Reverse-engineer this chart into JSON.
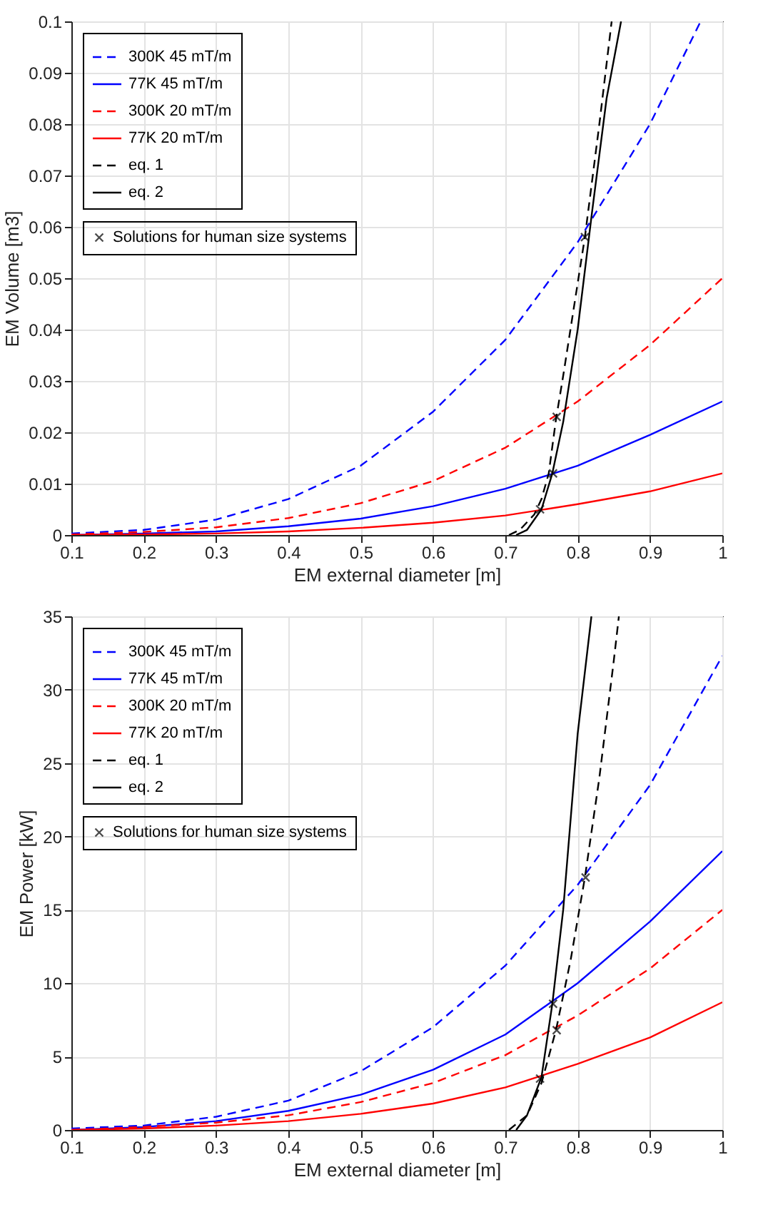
{
  "chart_data": [
    {
      "type": "line",
      "xlabel": "EM external diameter [m]",
      "ylabel": "EM Volume [m3]",
      "xlim": [
        0.1,
        1
      ],
      "ylim": [
        0,
        0.1
      ],
      "xticks": [
        0.1,
        0.2,
        0.3,
        0.4,
        0.5,
        0.6,
        0.7,
        0.8,
        0.9,
        1
      ],
      "yticks": [
        0,
        0.01,
        0.02,
        0.03,
        0.04,
        0.05,
        0.06,
        0.07,
        0.08,
        0.09,
        0.1
      ],
      "grid": true,
      "legend": "top left",
      "series": [
        {
          "name": "300K 45 mT/m",
          "color": "#0000ff",
          "line_style": "dashed",
          "x": [
            0.1,
            0.2,
            0.3,
            0.4,
            0.5,
            0.6,
            0.7,
            0.8,
            0.9,
            0.97
          ],
          "values": [
            0.0003,
            0.001,
            0.003,
            0.007,
            0.0135,
            0.024,
            0.038,
            0.057,
            0.08,
            0.1
          ]
        },
        {
          "name": "77K 45 mT/m",
          "color": "#0000ff",
          "line_style": "solid",
          "x": [
            0.1,
            0.2,
            0.3,
            0.4,
            0.5,
            0.6,
            0.7,
            0.8,
            0.9,
            1
          ],
          "values": [
            0,
            0.0003,
            0.0007,
            0.0017,
            0.0032,
            0.0056,
            0.009,
            0.0135,
            0.0195,
            0.026
          ]
        },
        {
          "name": "300K 20 mT/m",
          "color": "#ff0000",
          "line_style": "dashed",
          "x": [
            0.1,
            0.2,
            0.3,
            0.4,
            0.5,
            0.6,
            0.7,
            0.8,
            0.9,
            1
          ],
          "values": [
            0.0001,
            0.0006,
            0.0015,
            0.0033,
            0.0062,
            0.0105,
            0.017,
            0.026,
            0.037,
            0.05
          ]
        },
        {
          "name": "77K 20 mT/m",
          "color": "#ff0000",
          "line_style": "solid",
          "x": [
            0.1,
            0.2,
            0.3,
            0.4,
            0.5,
            0.6,
            0.7,
            0.8,
            0.9,
            1
          ],
          "values": [
            0,
            0.0001,
            0.0003,
            0.0007,
            0.0014,
            0.0024,
            0.0038,
            0.006,
            0.0085,
            0.012
          ]
        },
        {
          "name": "eq. 1",
          "color": "#000000",
          "line_style": "dashed",
          "x": [
            0.705,
            0.72,
            0.74,
            0.75,
            0.76,
            0.77,
            0.78,
            0.79,
            0.81,
            0.83,
            0.847
          ],
          "values": [
            0,
            0.001,
            0.004,
            0.007,
            0.012,
            0.0225,
            0.031,
            0.04,
            0.058,
            0.08,
            0.1
          ]
        },
        {
          "name": "eq. 2",
          "color": "#000000",
          "line_style": "solid",
          "x": [
            0.715,
            0.73,
            0.75,
            0.765,
            0.78,
            0.8,
            0.82,
            0.84,
            0.86
          ],
          "values": [
            0,
            0.001,
            0.005,
            0.012,
            0.022,
            0.04,
            0.063,
            0.085,
            0.1
          ]
        },
        {
          "name": "Solutions for human size systems",
          "type": "scatter",
          "marker": "cross",
          "color": "#000000",
          "x": [
            0.748,
            0.766,
            0.771,
            0.81
          ],
          "values": [
            0.005,
            0.012,
            0.023,
            0.058
          ]
        }
      ]
    },
    {
      "type": "line",
      "xlabel": "EM external diameter [m]",
      "ylabel": "EM Power [kW]",
      "xlim": [
        0.1,
        1
      ],
      "ylim": [
        0,
        35
      ],
      "xticks": [
        0.1,
        0.2,
        0.3,
        0.4,
        0.5,
        0.6,
        0.7,
        0.8,
        0.9,
        1
      ],
      "yticks": [
        0,
        5,
        10,
        15,
        20,
        25,
        30,
        35
      ],
      "grid": true,
      "legend": "top left",
      "series": [
        {
          "name": "300K 45 mT/m",
          "color": "#0000ff",
          "line_style": "dashed",
          "x": [
            0.1,
            0.2,
            0.3,
            0.4,
            0.5,
            0.6,
            0.7,
            0.8,
            0.9,
            1
          ],
          "values": [
            0.1,
            0.3,
            0.9,
            2,
            4,
            7,
            11.2,
            16.7,
            23.5,
            32.3
          ]
        },
        {
          "name": "77K 45 mT/m",
          "color": "#0000ff",
          "line_style": "solid",
          "x": [
            0.1,
            0.2,
            0.3,
            0.4,
            0.5,
            0.6,
            0.7,
            0.8,
            0.9,
            1
          ],
          "values": [
            0,
            0.2,
            0.6,
            1.3,
            2.4,
            4.1,
            6.5,
            10,
            14.2,
            19
          ]
        },
        {
          "name": "300K 20 mT/m",
          "color": "#ff0000",
          "line_style": "dashed",
          "x": [
            0.1,
            0.2,
            0.3,
            0.4,
            0.5,
            0.6,
            0.7,
            0.8,
            0.9,
            1
          ],
          "values": [
            0,
            0.2,
            0.5,
            1,
            1.9,
            3.2,
            5.1,
            7.8,
            11,
            15
          ]
        },
        {
          "name": "77K 20 mT/m",
          "color": "#ff0000",
          "line_style": "solid",
          "x": [
            0.1,
            0.2,
            0.3,
            0.4,
            0.5,
            0.6,
            0.7,
            0.8,
            0.9,
            1
          ],
          "values": [
            0,
            0.1,
            0.3,
            0.6,
            1.1,
            1.8,
            2.9,
            4.5,
            6.3,
            8.7
          ]
        },
        {
          "name": "eq. 1",
          "color": "#000000",
          "line_style": "dashed",
          "x": [
            0.705,
            0.73,
            0.75,
            0.77,
            0.79,
            0.81,
            0.83,
            0.85,
            0.857
          ],
          "values": [
            0,
            1,
            3.2,
            6.8,
            11.5,
            17.2,
            24,
            32,
            35
          ]
        },
        {
          "name": "eq. 2",
          "color": "#000000",
          "line_style": "solid",
          "x": [
            0.715,
            0.73,
            0.75,
            0.765,
            0.78,
            0.8,
            0.819
          ],
          "values": [
            0,
            1,
            3.6,
            8.6,
            15,
            27,
            35
          ]
        },
        {
          "name": "Solutions for human size systems",
          "type": "scatter",
          "marker": "cross",
          "color": "#000000",
          "x": [
            0.748,
            0.766,
            0.771,
            0.811
          ],
          "values": [
            3.5,
            8.6,
            6.8,
            17.2
          ]
        }
      ]
    }
  ]
}
